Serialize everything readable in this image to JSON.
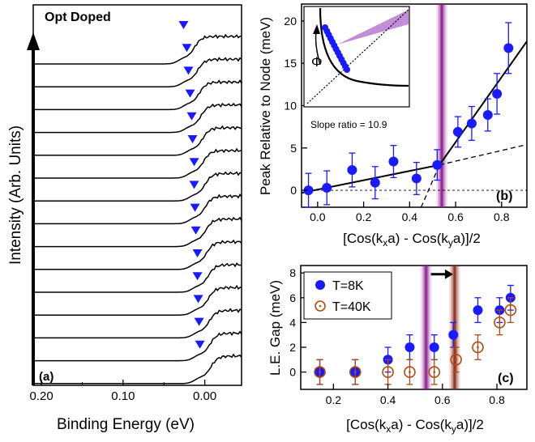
{
  "chart_data": [
    {
      "id": "a",
      "type": "line",
      "panel_label": "(a)",
      "title": "Opt Doped",
      "xlabel": "Binding Energy (eV)",
      "ylabel": "Intensity (Arb. Units)",
      "xlim": [
        0.21,
        -0.045
      ],
      "x_reversed": true,
      "xticks": [
        0.2,
        0.1,
        0.0
      ],
      "xtick_labels": [
        "0.20",
        "0.10",
        "0.00"
      ],
      "series_count": 15,
      "marker_color": "#1a1aff",
      "series_peak_positions_eV": [
        0.026,
        0.022,
        0.02,
        0.018,
        0.016,
        0.015,
        0.013,
        0.013,
        0.012,
        0.011,
        0.009,
        0.009,
        0.008,
        0.007,
        0.006
      ]
    },
    {
      "id": "b",
      "type": "scatter",
      "panel_label": "(b)",
      "xlabel_main": "[Cos(k",
      "xlabel_sub1": "x",
      "xlabel_mid": "a) - Cos(k",
      "xlabel_sub2": "y",
      "xlabel_end": "a)]/2",
      "ylabel": "Peak Relative to Node (meV)",
      "xlim": [
        -0.07,
        0.91
      ],
      "ylim": [
        -2,
        22
      ],
      "xticks": [
        0.0,
        0.2,
        0.4,
        0.6,
        0.8
      ],
      "xtick_labels": [
        "0.0",
        "0.2",
        "0.4",
        "0.6",
        "0.8"
      ],
      "yticks": [
        0,
        5,
        10,
        15,
        20
      ],
      "ytick_labels": [
        "0",
        "5",
        "10",
        "15",
        "20"
      ],
      "x": [
        -0.04,
        0.04,
        0.15,
        0.25,
        0.33,
        0.43,
        0.52,
        0.61,
        0.67,
        0.74,
        0.78,
        0.83
      ],
      "y": [
        0.0,
        0.3,
        2.4,
        0.9,
        3.4,
        1.4,
        3.0,
        6.9,
        7.9,
        8.9,
        11.4,
        16.8
      ],
      "yerr": [
        2.0,
        2.0,
        2.0,
        1.9,
        1.9,
        1.9,
        1.8,
        1.8,
        2.0,
        1.9,
        2.4,
        3.0
      ],
      "fit_low": {
        "x": [
          -0.07,
          0.53
        ],
        "y": [
          -0.3,
          3.0
        ]
      },
      "fit_high": {
        "x": [
          0.53,
          0.91
        ],
        "y": [
          3.0,
          17.6
        ]
      },
      "fit_low_ext_dashed": {
        "x": [
          0.53,
          0.91
        ],
        "y": [
          3.0,
          5.4
        ]
      },
      "fit_high_ext_dashed": {
        "x": [
          0.45,
          0.53
        ],
        "y": [
          -2.0,
          3.0
        ]
      },
      "band_x": 0.54,
      "band_color": "#8b1a8b",
      "marker_color": "#1a1aff",
      "annotation": "Slope ratio = 10.9",
      "inset_symbol": "Φ"
    },
    {
      "id": "c",
      "type": "scatter",
      "panel_label": "(c)",
      "xlabel_main": "[Cos(k",
      "xlabel_sub1": "x",
      "xlabel_mid": "a) - Cos(k",
      "xlabel_sub2": "y",
      "xlabel_end": "a)]/2",
      "ylabel": "L.E. Gap (meV)",
      "xlim": [
        0.08,
        0.91
      ],
      "ylim": [
        -1.4,
        8.6
      ],
      "xticks": [
        0.2,
        0.4,
        0.6,
        0.8
      ],
      "xtick_labels": [
        "0.2",
        "0.4",
        "0.6",
        "0.8"
      ],
      "yticks": [
        0,
        2,
        4,
        6,
        8
      ],
      "ytick_labels": [
        "0",
        "2",
        "4",
        "6",
        "8"
      ],
      "band_purple_x": 0.54,
      "band_red_x": 0.645,
      "band_purple_color": "#8b1a8b",
      "band_red_color": "#8b2a1a",
      "legend_position": "top-left",
      "series": [
        {
          "name": "T=8K",
          "color": "#1a1aff",
          "filled": true,
          "x": [
            0.15,
            0.28,
            0.4,
            0.48,
            0.57,
            0.64,
            0.73,
            0.81,
            0.85
          ],
          "y": [
            0.0,
            0.0,
            1.0,
            2.0,
            2.0,
            3.0,
            5.0,
            5.0,
            6.0
          ],
          "yerr": [
            1.0,
            1.0,
            1.0,
            1.0,
            1.0,
            1.0,
            1.0,
            1.0,
            1.0
          ]
        },
        {
          "name": "T=40K",
          "color": "#b04a10",
          "filled": false,
          "x": [
            0.15,
            0.28,
            0.4,
            0.48,
            0.57,
            0.65,
            0.73,
            0.81,
            0.85
          ],
          "y": [
            0.0,
            0.0,
            0.0,
            0.0,
            0.0,
            1.0,
            2.0,
            4.0,
            5.0
          ],
          "yerr": [
            1.0,
            1.0,
            1.0,
            1.0,
            1.0,
            1.0,
            1.0,
            1.0,
            1.0
          ]
        }
      ]
    }
  ]
}
